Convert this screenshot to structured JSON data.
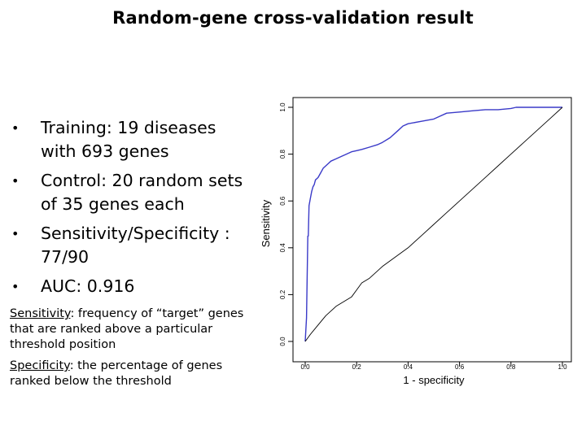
{
  "slide": {
    "title": "Random-gene cross-validation result",
    "bullets": [
      {
        "bullet": "•",
        "text": "Training: 19 diseases with 693 genes"
      },
      {
        "bullet": "•",
        "text": "Control: 20 random sets of 35 genes each"
      },
      {
        "bullet": "•",
        "text": "Sensitivity/Specificity : 77/90"
      },
      {
        "bullet": "•",
        "text": "AUC: 0.916"
      }
    ],
    "definitions": [
      {
        "term": "Sensitivity",
        "text": ": frequency of “target” genes that are ranked above a particular threshold position"
      },
      {
        "term": "Specificity",
        "text": ": the percentage of genes ranked below the threshold"
      }
    ]
  },
  "chart_data": {
    "type": "line",
    "xlabel": "1 - specificity",
    "ylabel": "Sensitivity",
    "xlim": [
      0,
      1
    ],
    "ylim": [
      0,
      1
    ],
    "xticks": [
      "0.0",
      "0.2",
      "0.4",
      "0.6",
      "0.8",
      "1.0"
    ],
    "yticks": [
      "0.0",
      "0.2",
      "0.4",
      "0.6",
      "0.8",
      "1.0"
    ],
    "grid": false,
    "legend": "none",
    "series": [
      {
        "color": "#3a3ac8",
        "x": [
          0,
          0.005,
          0.01,
          0.012,
          0.015,
          0.02,
          0.025,
          0.03,
          0.035,
          0.04,
          0.05,
          0.06,
          0.07,
          0.08,
          0.09,
          0.1,
          0.12,
          0.14,
          0.16,
          0.18,
          0.2,
          0.22,
          0.25,
          0.28,
          0.3,
          0.33,
          0.36,
          0.38,
          0.4,
          0.45,
          0.5,
          0.52,
          0.55,
          0.6,
          0.65,
          0.7,
          0.75,
          0.8,
          0.82,
          1.0
        ],
        "y": [
          0,
          0.1,
          0.45,
          0.45,
          0.58,
          0.61,
          0.64,
          0.66,
          0.67,
          0.69,
          0.7,
          0.72,
          0.74,
          0.75,
          0.76,
          0.77,
          0.78,
          0.79,
          0.8,
          0.81,
          0.815,
          0.82,
          0.83,
          0.84,
          0.85,
          0.87,
          0.9,
          0.92,
          0.93,
          0.94,
          0.95,
          0.96,
          0.975,
          0.98,
          0.985,
          0.99,
          0.99,
          0.995,
          1.0,
          1.0
        ]
      },
      {
        "color": "#000000",
        "x": [
          0,
          0.02,
          0.05,
          0.08,
          0.1,
          0.12,
          0.15,
          0.18,
          0.2,
          0.22,
          0.25,
          0.28,
          0.3,
          0.35,
          0.4,
          0.45,
          0.5,
          0.55,
          0.6,
          0.65,
          0.7,
          0.75,
          0.8,
          0.85,
          0.9,
          0.95,
          1.0
        ],
        "y": [
          0,
          0.03,
          0.07,
          0.11,
          0.13,
          0.15,
          0.17,
          0.19,
          0.22,
          0.25,
          0.27,
          0.3,
          0.32,
          0.36,
          0.4,
          0.45,
          0.5,
          0.55,
          0.6,
          0.65,
          0.7,
          0.75,
          0.8,
          0.85,
          0.9,
          0.95,
          1.0
        ]
      }
    ]
  }
}
